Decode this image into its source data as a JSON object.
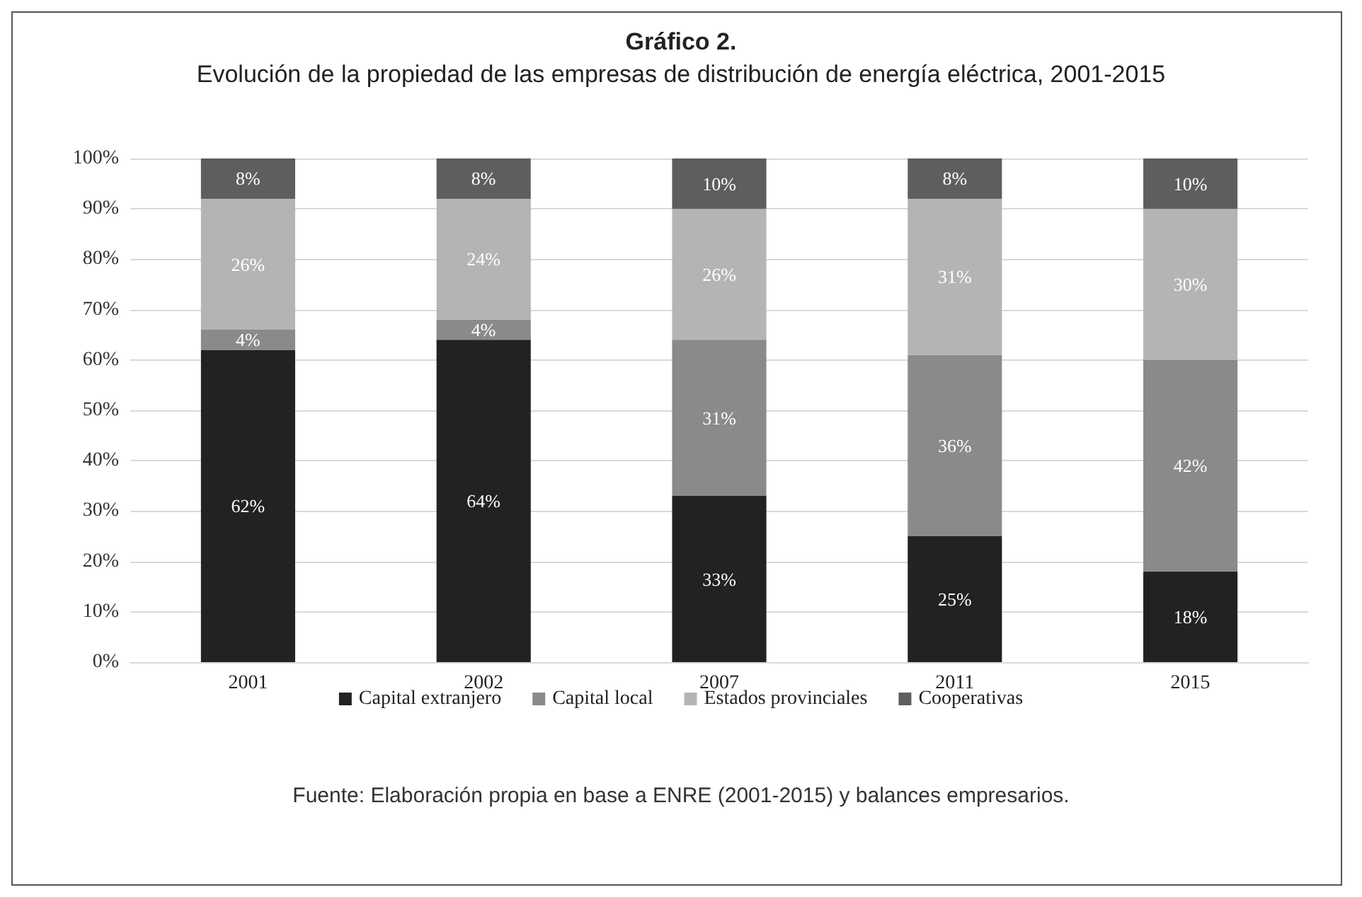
{
  "chart_data": {
    "type": "bar",
    "stacked": true,
    "title": "Gráfico 2.",
    "subtitle": "Evolución de la propiedad de las empresas de distribución de energía eléctrica, 2001-2015",
    "categories": [
      "2001",
      "2002",
      "2007",
      "2011",
      "2015"
    ],
    "series": [
      {
        "name": "Capital extranjero",
        "color": "#222222",
        "values": [
          62,
          64,
          33,
          25,
          18
        ],
        "value_labels": [
          "62%",
          "64%",
          "33%",
          "25%",
          "18%"
        ]
      },
      {
        "name": "Capital local",
        "color": "#8a8a8a",
        "values": [
          4,
          4,
          31,
          36,
          42
        ],
        "value_labels": [
          "4%",
          "4%",
          "31%",
          "36%",
          "42%"
        ]
      },
      {
        "name": "Estados provinciales",
        "color": "#b4b4b4",
        "values": [
          26,
          24,
          26,
          31,
          30
        ],
        "value_labels": [
          "26%",
          "24%",
          "26%",
          "31%",
          "30%"
        ]
      },
      {
        "name": "Cooperativas",
        "color": "#5e5e5e",
        "values": [
          8,
          8,
          10,
          8,
          10
        ],
        "value_labels": [
          "8%",
          "8%",
          "10%",
          "8%",
          "10%"
        ]
      }
    ],
    "ylim": [
      0,
      100
    ],
    "yticks": [
      {
        "value": 0,
        "label": "0%"
      },
      {
        "value": 10,
        "label": "10%"
      },
      {
        "value": 20,
        "label": "20%"
      },
      {
        "value": 30,
        "label": "30%"
      },
      {
        "value": 40,
        "label": "40%"
      },
      {
        "value": 50,
        "label": "50%"
      },
      {
        "value": 60,
        "label": "60%"
      },
      {
        "value": 70,
        "label": "70%"
      },
      {
        "value": 80,
        "label": "80%"
      },
      {
        "value": 90,
        "label": "90%"
      },
      {
        "value": 100,
        "label": "100%"
      }
    ],
    "grid": "y",
    "legend": "bottom",
    "annotations": [
      "Fuente: Elaboración propia en base a ENRE (2001-2015) y balances empresarios."
    ]
  }
}
